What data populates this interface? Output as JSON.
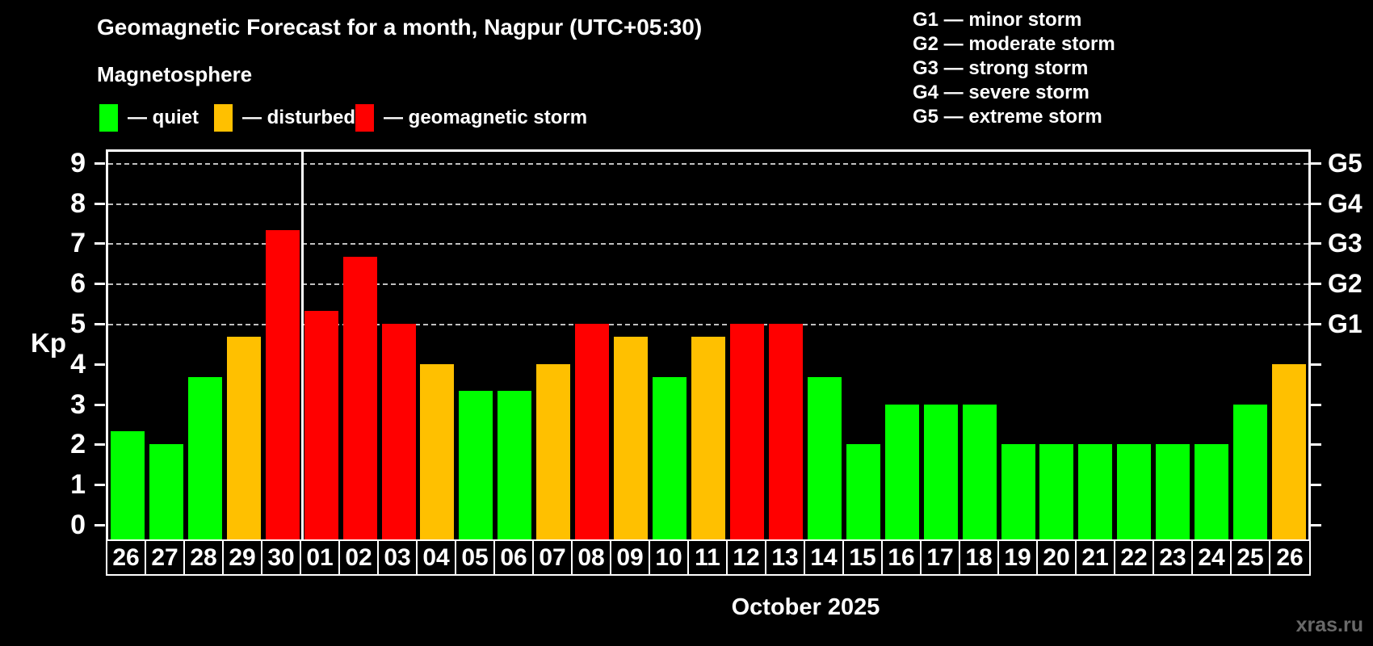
{
  "header": {
    "title": "Geomagnetic Forecast for a month, Nagpur (UTC+05:30)",
    "subtitle": "Magnetosphere"
  },
  "legend": {
    "items": [
      {
        "key": "quiet",
        "label": "— quiet",
        "color": "#00ff00"
      },
      {
        "key": "disturbed",
        "label": "— disturbed",
        "color": "#ffc000"
      },
      {
        "key": "storm",
        "label": "— geomagnetic storm",
        "color": "#ff0000"
      }
    ]
  },
  "g_legend": {
    "items": [
      "G1 — minor storm",
      "G2 — moderate storm",
      "G3 — strong storm",
      "G4 — severe storm",
      "G5 — extreme storm"
    ]
  },
  "chart_data": {
    "type": "bar",
    "title": "Geomagnetic Forecast for a month, Nagpur (UTC+05:30)",
    "ylabel": "Kp",
    "xlabel": "October 2025",
    "categories": [
      "26",
      "27",
      "28",
      "29",
      "30",
      "01",
      "02",
      "03",
      "04",
      "05",
      "06",
      "07",
      "08",
      "09",
      "10",
      "11",
      "12",
      "13",
      "14",
      "15",
      "16",
      "17",
      "18",
      "19",
      "20",
      "21",
      "22",
      "23",
      "24",
      "25",
      "26"
    ],
    "values": [
      2.33,
      2,
      3.67,
      4.67,
      7.33,
      5.33,
      6.67,
      5,
      4,
      3.33,
      3.33,
      4,
      5,
      4.67,
      3.67,
      4.67,
      5,
      5,
      3.67,
      2,
      3,
      3,
      3,
      2,
      2,
      2,
      2,
      2,
      2,
      3,
      4
    ],
    "statuses": [
      "quiet",
      "quiet",
      "quiet",
      "disturbed",
      "storm",
      "storm",
      "storm",
      "storm",
      "disturbed",
      "quiet",
      "quiet",
      "disturbed",
      "storm",
      "disturbed",
      "quiet",
      "disturbed",
      "storm",
      "storm",
      "quiet",
      "quiet",
      "quiet",
      "quiet",
      "quiet",
      "quiet",
      "quiet",
      "quiet",
      "quiet",
      "quiet",
      "quiet",
      "quiet",
      "disturbed"
    ],
    "month_separator_after_index": 4,
    "y_ticks": [
      0,
      1,
      2,
      3,
      4,
      5,
      6,
      7,
      8,
      9
    ],
    "ylim": [
      -0.36,
      9.36
    ],
    "gridlines_at": [
      5,
      6,
      7,
      8,
      9
    ],
    "right_axis_labels": [
      {
        "label": "G1",
        "kp": 5
      },
      {
        "label": "G2",
        "kp": 6
      },
      {
        "label": "G3",
        "kp": 7
      },
      {
        "label": "G4",
        "kp": 8
      },
      {
        "label": "G5",
        "kp": 9
      }
    ],
    "colors": {
      "quiet": "#00ff00",
      "disturbed": "#ffc000",
      "storm": "#ff0000"
    },
    "color_thresholds": {
      "disturbed_min_kp": 4,
      "storm_min_kp": 5
    },
    "legend_position": "top",
    "grid": "dashed horizontal at storm levels only"
  },
  "footer": {
    "month_label": "October 2025",
    "watermark": "xras.ru"
  }
}
